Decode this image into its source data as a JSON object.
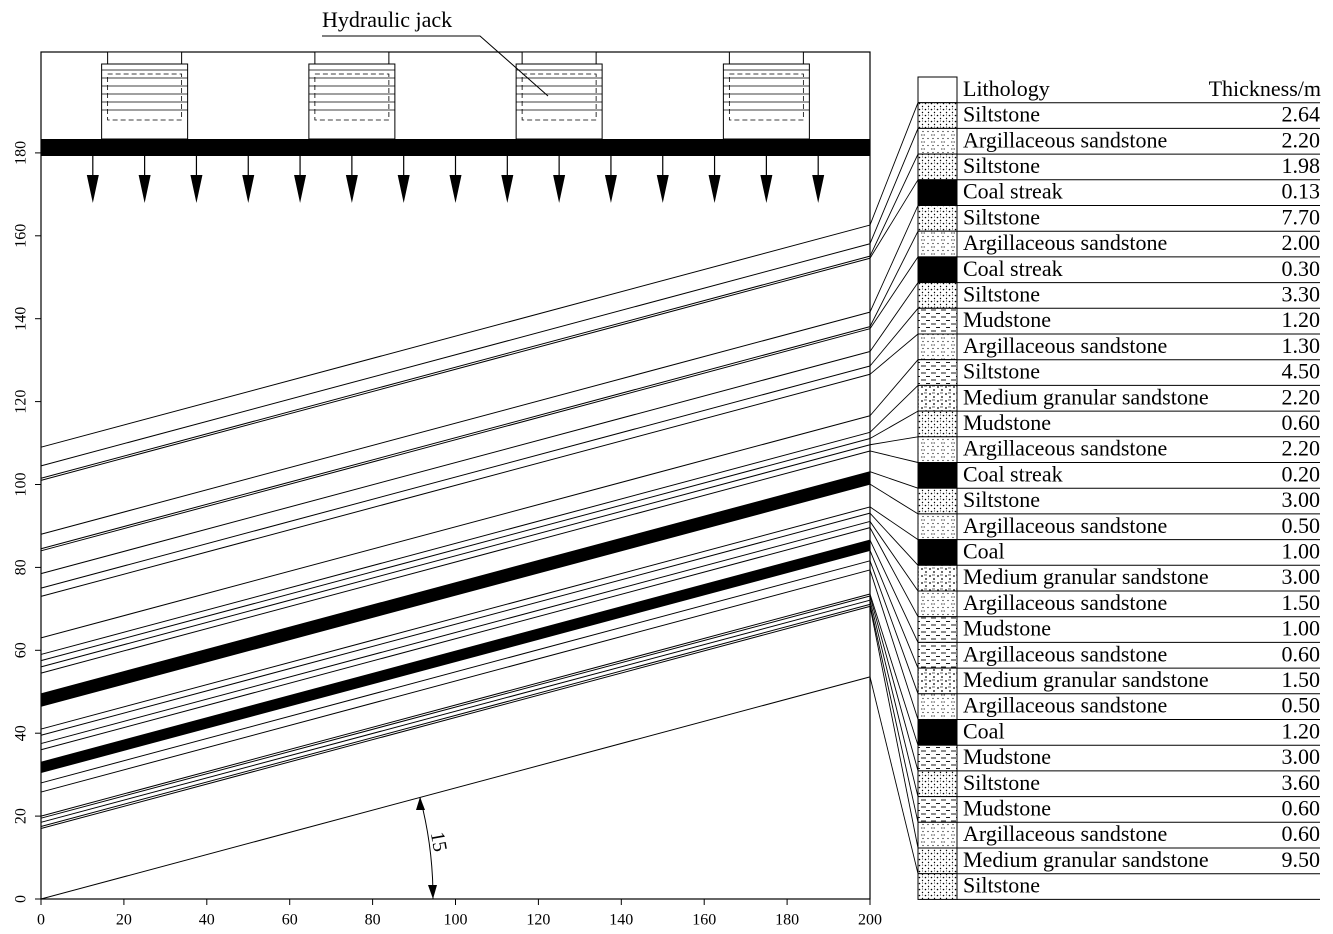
{
  "header": {
    "label": "Hydraulic jack",
    "angle_label": "15"
  },
  "axes": {
    "x_ticks": [
      0,
      20,
      40,
      60,
      80,
      100,
      120,
      140,
      160,
      180,
      200
    ],
    "y_ticks": [
      0,
      20,
      40,
      60,
      80,
      100,
      120,
      140,
      160,
      180
    ]
  },
  "table": {
    "columns": [
      "Lithology",
      "Thickness/m"
    ],
    "rows": [
      [
        "Siltstone",
        "2.64"
      ],
      [
        "Argillaceous sandstone",
        "2.20"
      ],
      [
        "Siltstone",
        "1.98"
      ],
      [
        "Coal streak",
        "0.13"
      ],
      [
        "Siltstone",
        "7.70"
      ],
      [
        "Argillaceous sandstone",
        "2.00"
      ],
      [
        "Coal streak",
        "0.30"
      ],
      [
        "Siltstone",
        "3.30"
      ],
      [
        "Mudstone",
        "1.20"
      ],
      [
        "Argillaceous sandstone",
        "1.30"
      ],
      [
        "Siltstone",
        "4.50"
      ],
      [
        "Medium granular sandstone",
        "2.20"
      ],
      [
        "Mudstone",
        "0.60"
      ],
      [
        "Argillaceous sandstone",
        "2.20"
      ],
      [
        "Coal streak",
        "0.20"
      ],
      [
        "Siltstone",
        "3.00"
      ],
      [
        "Argillaceous sandstone",
        "0.50"
      ],
      [
        "Coal",
        "1.00"
      ],
      [
        "Medium granular sandstone",
        "3.00"
      ],
      [
        "Argillaceous sandstone",
        "1.50"
      ],
      [
        "Mudstone",
        "1.00"
      ],
      [
        "Argillaceous sandstone",
        "0.60"
      ],
      [
        "Medium granular sandstone",
        "1.50"
      ],
      [
        "Argillaceous sandstone",
        "0.50"
      ],
      [
        "Coal",
        "1.20"
      ],
      [
        "Mudstone",
        "3.00"
      ],
      [
        "Siltstone",
        "3.60"
      ],
      [
        "Mudstone",
        "0.60"
      ],
      [
        "Argillaceous sandstone",
        "0.60"
      ],
      [
        "Medium granular sandstone",
        "9.50"
      ],
      [
        "Siltstone"
      ]
    ]
  }
}
